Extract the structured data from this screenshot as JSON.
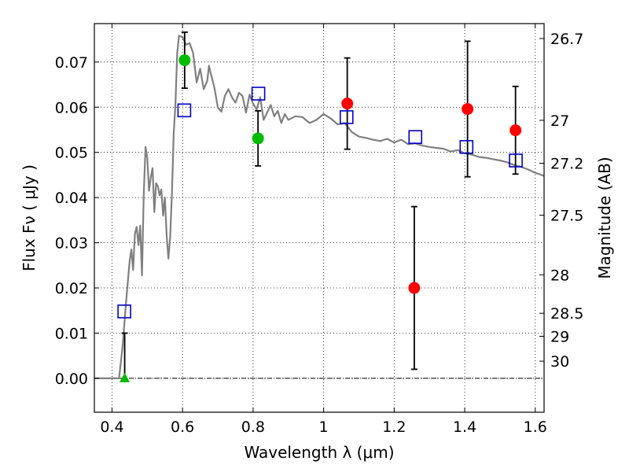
{
  "chart_data": {
    "type": "scatter",
    "xlabel": "Wavelength  λ (μm)",
    "ylabel": "Flux  Fν  ( μJy )",
    "y2label": "Magnitude (AB)",
    "xlim": [
      0.35,
      1.625
    ],
    "ylim": [
      -0.0075,
      0.0785
    ],
    "grid": true,
    "x_ticks": [
      0.4,
      0.6,
      0.8,
      1.0,
      1.2,
      1.4,
      1.6
    ],
    "x_tick_labels": [
      "0.4",
      "0.6",
      "0.8",
      "1",
      "1.2",
      "1.4",
      "1.6"
    ],
    "y_ticks": [
      0.0,
      0.01,
      0.02,
      0.03,
      0.04,
      0.05,
      0.06,
      0.07
    ],
    "y_tick_labels": [
      "0.00",
      "0.01",
      "0.02",
      "0.03",
      "0.04",
      "0.05",
      "0.06",
      "0.07"
    ],
    "magnitude_ticks": [
      {
        "label": "26.7",
        "flux": 0.0752
      },
      {
        "label": "27",
        "flux": 0.0571
      },
      {
        "label": "27.2",
        "flux": 0.0476
      },
      {
        "label": "27.5",
        "flux": 0.0361
      },
      {
        "label": "28",
        "flux": 0.0229
      },
      {
        "label": "28.5",
        "flux": 0.0144
      },
      {
        "label": "29",
        "flux": 0.0093
      },
      {
        "label": "30",
        "flux": 0.0038
      }
    ],
    "colors": {
      "model": "#808080",
      "green": "#00bb00",
      "red": "#ff0000",
      "blue": "#0000cc",
      "errorbar": "#000000"
    },
    "series": [
      {
        "name": "model spectrum",
        "kind": "line",
        "x": [
          0.35,
          0.42,
          0.43,
          0.44,
          0.45,
          0.455,
          0.46,
          0.465,
          0.47,
          0.475,
          0.48,
          0.485,
          0.49,
          0.495,
          0.5,
          0.505,
          0.51,
          0.515,
          0.52,
          0.525,
          0.53,
          0.535,
          0.54,
          0.545,
          0.55,
          0.555,
          0.56,
          0.565,
          0.57,
          0.575,
          0.58,
          0.585,
          0.59,
          0.6,
          0.61,
          0.62,
          0.63,
          0.64,
          0.65,
          0.66,
          0.67,
          0.675,
          0.68,
          0.69,
          0.7,
          0.71,
          0.72,
          0.73,
          0.74,
          0.75,
          0.76,
          0.77,
          0.78,
          0.79,
          0.8,
          0.81,
          0.82,
          0.83,
          0.84,
          0.85,
          0.86,
          0.87,
          0.88,
          0.89,
          0.9,
          0.92,
          0.94,
          0.96,
          0.98,
          1.0,
          1.02,
          1.04,
          1.06,
          1.08,
          1.1,
          1.12,
          1.14,
          1.16,
          1.18,
          1.2,
          1.22,
          1.24,
          1.26,
          1.28,
          1.3,
          1.32,
          1.34,
          1.36,
          1.38,
          1.4,
          1.42,
          1.44,
          1.46,
          1.48,
          1.5,
          1.52,
          1.54,
          1.56,
          1.58,
          1.6,
          1.625
        ],
        "y": [
          0.0,
          0.0,
          0.007,
          0.017,
          0.026,
          0.0285,
          0.024,
          0.032,
          0.0335,
          0.0295,
          0.0338,
          0.0228,
          0.0405,
          0.0512,
          0.0488,
          0.0415,
          0.0445,
          0.0465,
          0.0368,
          0.0432,
          0.0425,
          0.0405,
          0.0418,
          0.036,
          0.04,
          0.0315,
          0.0265,
          0.0315,
          0.041,
          0.054,
          0.061,
          0.072,
          0.0758,
          0.0755,
          0.0738,
          0.0742,
          0.072,
          0.0655,
          0.0685,
          0.064,
          0.0658,
          0.0692,
          0.0675,
          0.0645,
          0.06,
          0.059,
          0.0625,
          0.064,
          0.0622,
          0.061,
          0.0632,
          0.0625,
          0.0588,
          0.0628,
          0.0608,
          0.0595,
          0.0622,
          0.0572,
          0.0588,
          0.0605,
          0.058,
          0.0592,
          0.0565,
          0.0585,
          0.0572,
          0.058,
          0.0578,
          0.0565,
          0.0572,
          0.0585,
          0.0575,
          0.0562,
          0.0565,
          0.0545,
          0.0535,
          0.0532,
          0.0528,
          0.0525,
          0.053,
          0.0522,
          0.0528,
          0.0518,
          0.052,
          0.0515,
          0.0512,
          0.051,
          0.0508,
          0.0502,
          0.0505,
          0.0498,
          0.0495,
          0.049,
          0.0488,
          0.0485,
          0.0482,
          0.0478,
          0.0472,
          0.0468,
          0.0462,
          0.0455,
          0.0448
        ]
      },
      {
        "name": "model fluxes",
        "kind": "open-square",
        "x": [
          0.435,
          0.605,
          0.815,
          1.065,
          1.26,
          1.405,
          1.545
        ],
        "y": [
          0.0148,
          0.0593,
          0.063,
          0.0578,
          0.0534,
          0.0512,
          0.0482
        ]
      },
      {
        "name": "detections (green)",
        "kind": "circle",
        "x": [
          0.606,
          0.814
        ],
        "y": [
          0.0704,
          0.0531
        ],
        "yerr": [
          [
            0.0062,
            0.0062
          ],
          [
            0.0061,
            0.0061
          ]
        ]
      },
      {
        "name": "detections (red)",
        "kind": "circle",
        "x": [
          1.067,
          1.257,
          1.408,
          1.544
        ],
        "y": [
          0.0608,
          0.02,
          0.0596,
          0.0549
        ],
        "yerr": [
          [
            0.0101,
            0.0101
          ],
          [
            0.018,
            0.018
          ],
          [
            0.015,
            0.015
          ],
          [
            0.0097,
            0.0097
          ]
        ]
      },
      {
        "name": "upper limit (green)",
        "kind": "triangle",
        "x": [
          0.436
        ],
        "y": [
          0.0
        ],
        "yerr": [
          [
            0.0,
            0.01
          ]
        ]
      }
    ]
  }
}
